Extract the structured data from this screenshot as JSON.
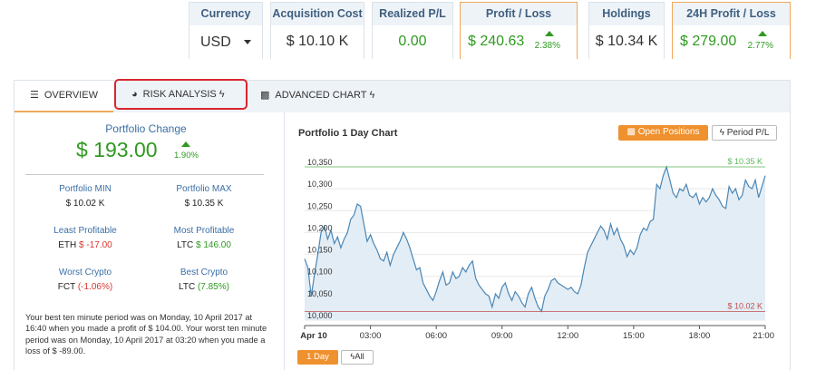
{
  "header": {
    "currency": {
      "label": "Currency",
      "value": "USD"
    },
    "acquisition_cost": {
      "label": "Acquisition Cost",
      "value": "$ 10.10 K"
    },
    "realized_pl": {
      "label": "Realized P/L",
      "value": "0.00"
    },
    "profit_loss": {
      "label": "Profit / Loss",
      "value": "$ 240.63",
      "pct": "2.38%"
    },
    "holdings": {
      "label": "Holdings",
      "value": "$ 10.34 K"
    },
    "profit_24h": {
      "label": "24H Profit / Loss",
      "value": "$ 279.00",
      "pct": "2.77%"
    }
  },
  "tabs": [
    {
      "label": "OVERVIEW",
      "icon": "overview-icon"
    },
    {
      "label": "RISK ANALYSIS",
      "icon": "pie-chart-icon"
    },
    {
      "label": "ADVANCED CHART",
      "icon": "bar-chart-icon"
    }
  ],
  "portfolio": {
    "change_label": "Portfolio Change",
    "change_value": "$ 193.00",
    "change_pct": "1.90%",
    "min_label": "Portfolio MIN",
    "min_value": "$ 10.02 K",
    "max_label": "Portfolio MAX",
    "max_value": "$ 10.35 K",
    "least_label": "Least Profitable",
    "least_coin": "ETH",
    "least_value": "$ -17.00",
    "most_label": "Most Profitable",
    "most_coin": "LTC",
    "most_value": "$ 146.00",
    "worst_label": "Worst Crypto",
    "worst_coin": "FCT",
    "worst_value": "(-1.06%)",
    "best_label": "Best Crypto",
    "best_coin": "LTC",
    "best_value": "(7.85%)",
    "note": "Your best ten minute period was on Monday, 10 April 2017 at 16:40 when you made a profit of $ 104.00. Your worst ten minute period was on Monday, 10 April 2017 at 03:20 when you made a loss of $ -89.00."
  },
  "chart": {
    "title": "Portfolio 1 Day Chart",
    "open_positions_label": "Open Positions",
    "period_pl_label": "Period P/L",
    "range_1d_label": "1 Day",
    "range_all_label": "All",
    "max_marker": "$ 10.35 K",
    "min_marker": "$ 10.02 K",
    "colors": {
      "line": "#4a86b5",
      "fill": "#e3edf5",
      "max": "#5cb85c",
      "min": "#c0504d"
    }
  },
  "chart_data": {
    "type": "area",
    "title": "Portfolio 1 Day Chart",
    "xlabel": "",
    "ylabel": "",
    "x_ticks": [
      "Apr 10",
      "03:00",
      "06:00",
      "09:00",
      "12:00",
      "15:00",
      "18:00",
      "21:00"
    ],
    "y_ticks": [
      10000,
      10050,
      10100,
      10150,
      10200,
      10250,
      10300,
      10350
    ],
    "ylim": [
      10000,
      10350
    ],
    "xlim_hours": [
      0,
      21
    ],
    "grid": "horizontal",
    "series": [
      {
        "values_x_hours": [
          0,
          0.15,
          0.3,
          0.45,
          0.6,
          0.75,
          0.9,
          1.05,
          1.2,
          1.35,
          1.5,
          1.65,
          1.8,
          1.95,
          2.1,
          2.25,
          2.4,
          2.55,
          2.7,
          2.85,
          3.0,
          3.15,
          3.3,
          3.45,
          3.6,
          3.75,
          3.9,
          4.05,
          4.2,
          4.35,
          4.5,
          4.65,
          4.8,
          4.95,
          5.1,
          5.25,
          5.4,
          5.55,
          5.7,
          5.85,
          6.0,
          6.15,
          6.3,
          6.45,
          6.6,
          6.75,
          6.9,
          7.05,
          7.2,
          7.35,
          7.5,
          7.65,
          7.8,
          7.95,
          8.1,
          8.25,
          8.4,
          8.55,
          8.7,
          8.85,
          9.0,
          9.15,
          9.3,
          9.45,
          9.6,
          9.75,
          9.9,
          10.05,
          10.2,
          10.35,
          10.5,
          10.65,
          10.8,
          10.95,
          11.1,
          11.25,
          11.4,
          11.55,
          11.7,
          11.85,
          12.0,
          12.15,
          12.3,
          12.45,
          12.6,
          12.75,
          12.9,
          13.05,
          13.2,
          13.35,
          13.5,
          13.65,
          13.8,
          13.95,
          14.1,
          14.25,
          14.4,
          14.55,
          14.7,
          14.85,
          15.0,
          15.15,
          15.3,
          15.45,
          15.6,
          15.75,
          15.9,
          16.05,
          16.2,
          16.35,
          16.5,
          16.65,
          16.8,
          16.95,
          17.1,
          17.25,
          17.4,
          17.55,
          17.7,
          17.85,
          18.0,
          18.15,
          18.3,
          18.45,
          18.6,
          18.75,
          18.9,
          19.05,
          19.2,
          19.35,
          19.5,
          19.65,
          19.8,
          19.95,
          20.1,
          20.25,
          20.4,
          20.55,
          20.7,
          20.85,
          21.0
        ],
        "values": [
          10140,
          10120,
          10055,
          10105,
          10150,
          10200,
          10215,
          10185,
          10205,
          10175,
          10190,
          10165,
          10185,
          10200,
          10230,
          10240,
          10265,
          10260,
          10220,
          10180,
          10195,
          10175,
          10160,
          10140,
          10135,
          10155,
          10125,
          10150,
          10165,
          10180,
          10200,
          10185,
          10165,
          10140,
          10115,
          10120,
          10085,
          10070,
          10055,
          10045,
          10065,
          10090,
          10110,
          10080,
          10085,
          10110,
          10095,
          10100,
          10120,
          10110,
          10125,
          10135,
          10095,
          10080,
          10070,
          10060,
          10055,
          10030,
          10060,
          10050,
          10075,
          10085,
          10060,
          10045,
          10065,
          10055,
          10040,
          10030,
          10060,
          10075,
          10050,
          10030,
          10020,
          10055,
          10070,
          10090,
          10095,
          10085,
          10080,
          10075,
          10070,
          10075,
          10065,
          10060,
          10080,
          10120,
          10155,
          10170,
          10185,
          10200,
          10215,
          10205,
          10185,
          10220,
          10195,
          10210,
          10185,
          10170,
          10145,
          10160,
          10150,
          10165,
          10195,
          10210,
          10205,
          10225,
          10230,
          10310,
          10300,
          10330,
          10350,
          10320,
          10290,
          10280,
          10300,
          10295,
          10310,
          10285,
          10280,
          10290,
          10265,
          10280,
          10270,
          10280,
          10300,
          10285,
          10275,
          10260,
          10255,
          10305,
          10290,
          10300,
          10275,
          10285,
          10320,
          10305,
          10300,
          10320,
          10280,
          10305,
          10330
        ]
      }
    ],
    "max_line": 10350,
    "min_line": 10020
  }
}
